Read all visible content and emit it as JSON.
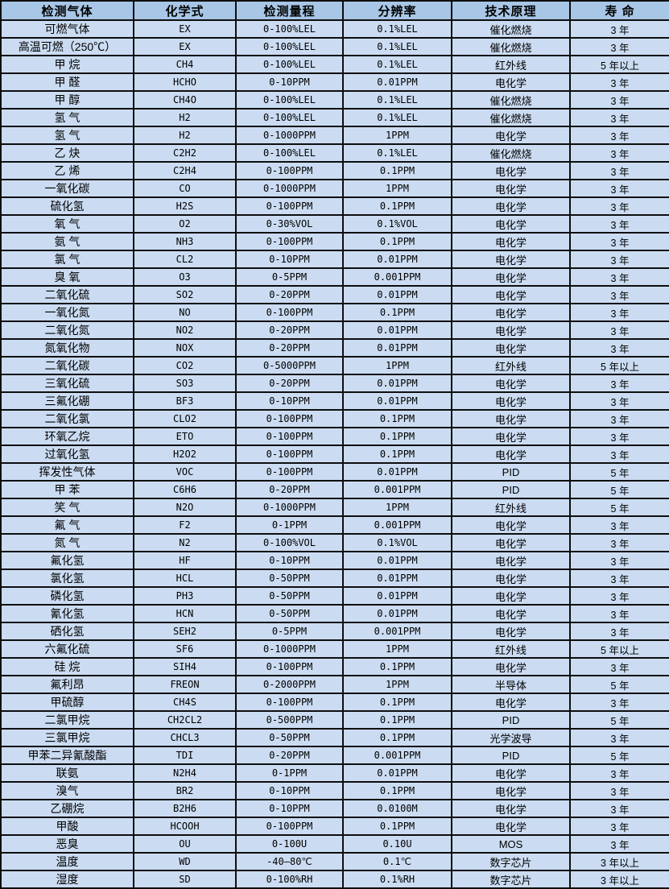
{
  "colors": {
    "header_bg": "#a8c6e6",
    "row_bg": "#cbdcf2",
    "border": "#0e0e0e"
  },
  "table": {
    "columns": [
      "检测气体",
      "化学式",
      "检测量程",
      "分辨率",
      "技术原理",
      "寿 命"
    ],
    "rows": [
      [
        "可燃气体",
        "EX",
        "0-100%LEL",
        "0.1%LEL",
        "催化燃烧",
        "3 年"
      ],
      [
        "高温可燃（250℃）",
        "EX",
        "0-100%LEL",
        "0.1%LEL",
        "催化燃烧",
        "3 年"
      ],
      [
        "甲 烷",
        "CH4",
        "0-100%LEL",
        "0.1%LEL",
        "红外线",
        "5 年以上"
      ],
      [
        "甲 醛",
        "HCHO",
        "0-10PPM",
        "0.01PPM",
        "电化学",
        "3 年"
      ],
      [
        "甲 醇",
        "CH4O",
        "0-100%LEL",
        "0.1%LEL",
        "催化燃烧",
        "3 年"
      ],
      [
        "氢 气",
        "H2",
        "0-100%LEL",
        "0.1%LEL",
        "催化燃烧",
        "3 年"
      ],
      [
        "氢 气",
        "H2",
        "0-1000PPM",
        "1PPM",
        "电化学",
        "3 年"
      ],
      [
        "乙 炔",
        "C2H2",
        "0-100%LEL",
        "0.1%LEL",
        "催化燃烧",
        "3 年"
      ],
      [
        "乙 烯",
        "C2H4",
        "0-100PPM",
        "0.1PPM",
        "电化学",
        "3 年"
      ],
      [
        "一氧化碳",
        "CO",
        "0-1000PPM",
        "1PPM",
        "电化学",
        "3 年"
      ],
      [
        "硫化氢",
        "H2S",
        "0-100PPM",
        "0.1PPM",
        "电化学",
        "3 年"
      ],
      [
        "氧 气",
        "O2",
        "0-30%VOL",
        "0.1%VOL",
        "电化学",
        "3 年"
      ],
      [
        "氨 气",
        "NH3",
        "0-100PPM",
        "0.1PPM",
        "电化学",
        "3 年"
      ],
      [
        "氯 气",
        "CL2",
        "0-10PPM",
        "0.01PPM",
        "电化学",
        "3 年"
      ],
      [
        "臭 氧",
        "O3",
        "0-5PPM",
        "0.001PPM",
        "电化学",
        "3 年"
      ],
      [
        "二氧化硫",
        "SO2",
        "0-20PPM",
        "0.01PPM",
        "电化学",
        "3 年"
      ],
      [
        "一氧化氮",
        "NO",
        "0-100PPM",
        "0.1PPM",
        "电化学",
        "3 年"
      ],
      [
        "二氧化氮",
        "NO2",
        "0-20PPM",
        "0.01PPM",
        "电化学",
        "3 年"
      ],
      [
        "氮氧化物",
        "NOX",
        "0-20PPM",
        "0.01PPM",
        "电化学",
        "3 年"
      ],
      [
        "二氧化碳",
        "CO2",
        "0-5000PPM",
        "1PPM",
        "红外线",
        "5 年以上"
      ],
      [
        "三氧化硫",
        "SO3",
        "0-20PPM",
        "0.01PPM",
        "电化学",
        "3 年"
      ],
      [
        "三氟化硼",
        "BF3",
        "0-10PPM",
        "0.01PPM",
        "电化学",
        "3 年"
      ],
      [
        "二氧化氯",
        "CLO2",
        "0-100PPM",
        "0.1PPM",
        "电化学",
        "3 年"
      ],
      [
        "环氧乙烷",
        "ETO",
        "0-100PPM",
        "0.1PPM",
        "电化学",
        "3 年"
      ],
      [
        "过氧化氢",
        "H2O2",
        "0-100PPM",
        "0.1PPM",
        "电化学",
        "3 年"
      ],
      [
        "挥发性气体",
        "VOC",
        "0-100PPM",
        "0.01PPM",
        "PID",
        "5 年"
      ],
      [
        "甲 苯",
        "C6H6",
        "0-20PPM",
        "0.001PPM",
        "PID",
        "5 年"
      ],
      [
        "笑 气",
        "N2O",
        "0-1000PPM",
        "1PPM",
        "红外线",
        "5 年"
      ],
      [
        "氟 气",
        "F2",
        "0-1PPM",
        "0.001PPM",
        "电化学",
        "3 年"
      ],
      [
        "氮 气",
        "N2",
        "0-100%VOL",
        "0.1%VOL",
        "电化学",
        "3 年"
      ],
      [
        "氟化氢",
        "HF",
        "0-10PPM",
        "0.01PPM",
        "电化学",
        "3 年"
      ],
      [
        "氯化氢",
        "HCL",
        "0-50PPM",
        "0.01PPM",
        "电化学",
        "3 年"
      ],
      [
        "磷化氢",
        "PH3",
        "0-50PPM",
        "0.01PPM",
        "电化学",
        "3 年"
      ],
      [
        "氰化氢",
        "HCN",
        "0-50PPM",
        "0.01PPM",
        "电化学",
        "3 年"
      ],
      [
        "硒化氢",
        "SEH2",
        "0-5PPM",
        "0.001PPM",
        "电化学",
        "3 年"
      ],
      [
        "六氟化硫",
        "SF6",
        "0-1000PPM",
        "1PPM",
        "红外线",
        "5 年以上"
      ],
      [
        "硅 烷",
        "SIH4",
        "0-100PPM",
        "0.1PPM",
        "电化学",
        "3 年"
      ],
      [
        "氟利昂",
        "FREON",
        "0-2000PPM",
        "1PPM",
        "半导体",
        "5 年"
      ],
      [
        "甲硫醇",
        "CH4S",
        "0-100PPM",
        "0.1PPM",
        "电化学",
        "3 年"
      ],
      [
        "二氯甲烷",
        "CH2CL2",
        "0-500PPM",
        "0.1PPM",
        "PID",
        "5 年"
      ],
      [
        "三氯甲烷",
        "CHCL3",
        "0-50PPM",
        "0.1PPM",
        "光学波导",
        "3 年"
      ],
      [
        "甲苯二异氰酸酯",
        "TDI",
        "0-20PPM",
        "0.001PPM",
        "PID",
        "5 年"
      ],
      [
        "联氨",
        "N2H4",
        "0-1PPM",
        "0.01PPM",
        "电化学",
        "3 年"
      ],
      [
        "溴气",
        "BR2",
        "0-10PPM",
        "0.1PPM",
        "电化学",
        "3 年"
      ],
      [
        "乙硼烷",
        "B2H6",
        "0-10PPM",
        "0.0100M",
        "电化学",
        "3 年"
      ],
      [
        "甲酸",
        "HCOOH",
        "0-100PPM",
        "0.1PPM",
        "电化学",
        "3 年"
      ],
      [
        "恶臭",
        "OU",
        "0-100U",
        "0.10U",
        "MOS",
        "3 年"
      ],
      [
        "温度",
        "WD",
        "-40—80℃",
        "0.1℃",
        "数字芯片",
        "3 年以上"
      ],
      [
        "湿度",
        "SD",
        "0-100%RH",
        "0.1%RH",
        "数字芯片",
        "3 年以上"
      ]
    ]
  }
}
